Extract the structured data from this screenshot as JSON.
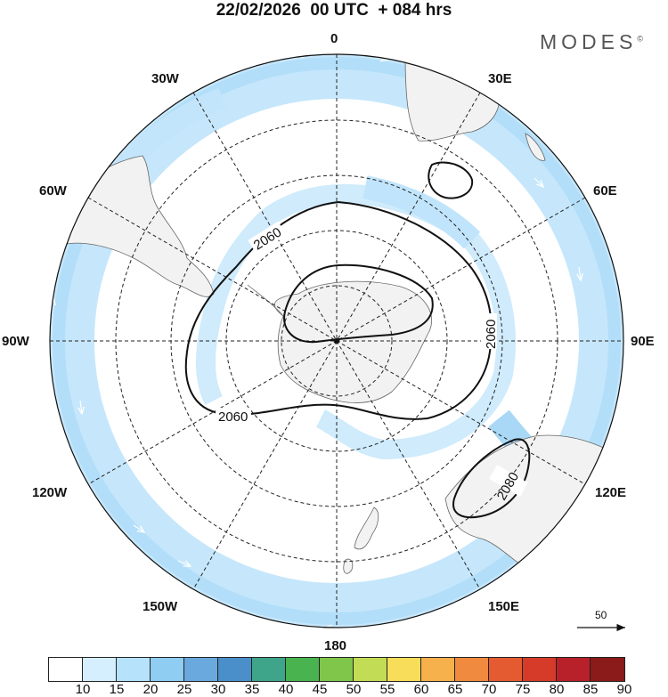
{
  "header": {
    "title": "22/02/2026  00 UTC  + 084 hrs",
    "brand": "MODES",
    "brand_mark": "©"
  },
  "longitude_labels": [
    "0",
    "30E",
    "60E",
    "90E",
    "120E",
    "150E",
    "180",
    "150W",
    "120W",
    "90W",
    "60W",
    "30W"
  ],
  "contours": [
    {
      "label": "2060"
    },
    {
      "label": "2060"
    },
    {
      "label": "2060"
    },
    {
      "label": "2080"
    }
  ],
  "reference_vector": {
    "label": "50"
  },
  "colorbar": {
    "labels": [
      "10",
      "15",
      "20",
      "25",
      "30",
      "35",
      "40",
      "45",
      "50",
      "55",
      "60",
      "65",
      "70",
      "75",
      "80",
      "85",
      "90"
    ],
    "colors": [
      "#ffffff",
      "#d5efff",
      "#b6e2fb",
      "#8fcdf2",
      "#6aa9de",
      "#4a8fc9",
      "#3ea58a",
      "#49b44f",
      "#7fc64a",
      "#c3dc55",
      "#f7dd59",
      "#f6b04c",
      "#f08a3e",
      "#e55b31",
      "#d63b2a",
      "#b8202a",
      "#8b1a1a"
    ]
  }
}
